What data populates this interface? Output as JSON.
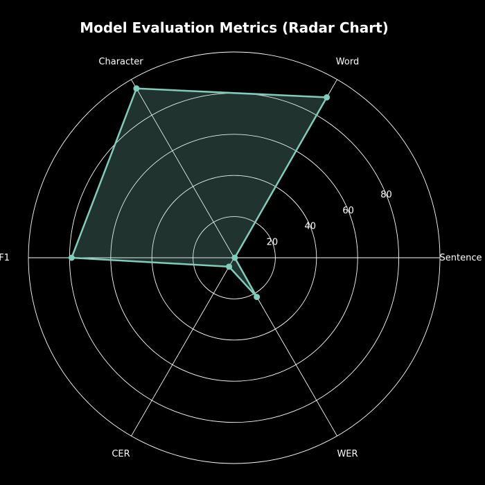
{
  "chart_data": {
    "type": "radar",
    "title": "Model Evaluation Metrics (Radar Chart)",
    "categories": [
      "Sentence",
      "Word",
      "Character",
      "F1",
      "CER",
      "WER"
    ],
    "series": [
      {
        "values": [
          0.3,
          90,
          95,
          79,
          5,
          22
        ]
      }
    ],
    "r_ticks": [
      "20",
      "40",
      "60",
      "80"
    ],
    "r_range": [
      0,
      100
    ],
    "grid": true,
    "legend": "none",
    "colors": {
      "background": "#000000",
      "grid": "#ffffff",
      "line": "#7fcdbb",
      "fill": "#7fcdbb",
      "text": "#ffffff"
    }
  }
}
